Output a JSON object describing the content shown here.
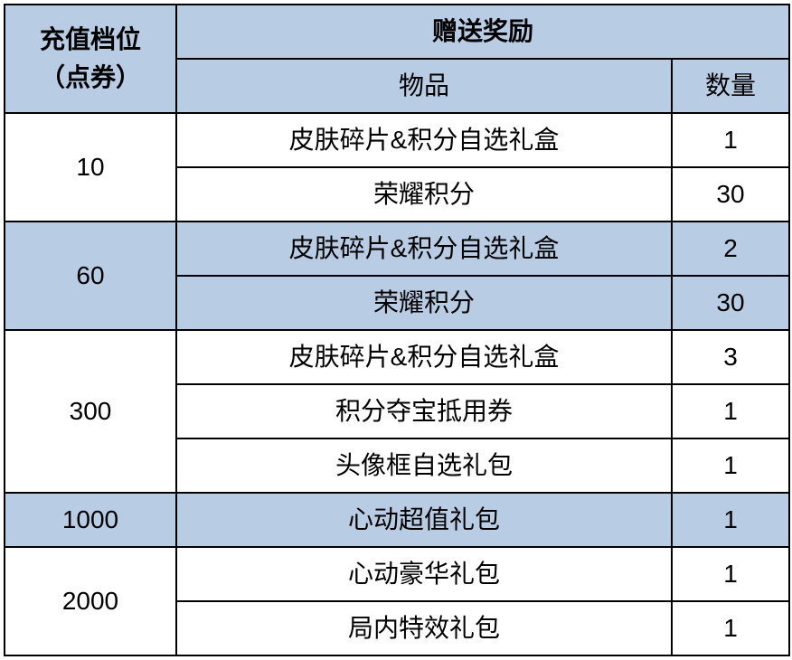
{
  "table": {
    "type": "table",
    "colors": {
      "header_bg": "#b8cce4",
      "row_white": "#ffffff",
      "row_blue": "#b8cce4",
      "border": "#000000",
      "text": "#000000"
    },
    "fonts": {
      "header_fontsize": 28,
      "cell_fontsize": 28,
      "header_weight": "bold",
      "cell_weight": "normal"
    },
    "columns": {
      "tier_width": 190,
      "item_width": 548,
      "qty_width": 130
    },
    "headers": {
      "tier_line1": "充值档位",
      "tier_line2": "（点券）",
      "reward": "赠送奖励",
      "item": "物品",
      "quantity": "数量"
    },
    "tiers": [
      {
        "tier": "10",
        "bg": "white",
        "rewards": [
          {
            "item": "皮肤碎片&积分自选礼盒",
            "qty": "1"
          },
          {
            "item": "荣耀积分",
            "qty": "30"
          }
        ]
      },
      {
        "tier": "60",
        "bg": "blue",
        "rewards": [
          {
            "item": "皮肤碎片&积分自选礼盒",
            "qty": "2"
          },
          {
            "item": "荣耀积分",
            "qty": "30"
          }
        ]
      },
      {
        "tier": "300",
        "bg": "white",
        "rewards": [
          {
            "item": "皮肤碎片&积分自选礼盒",
            "qty": "3"
          },
          {
            "item": "积分夺宝抵用券",
            "qty": "1"
          },
          {
            "item": "头像框自选礼包",
            "qty": "1"
          }
        ]
      },
      {
        "tier": "1000",
        "bg": "blue",
        "rewards": [
          {
            "item": "心动超值礼包",
            "qty": "1"
          }
        ]
      },
      {
        "tier": "2000",
        "bg": "white",
        "rewards": [
          {
            "item": "心动豪华礼包",
            "qty": "1"
          },
          {
            "item": "局内特效礼包",
            "qty": "1"
          }
        ]
      }
    ]
  }
}
